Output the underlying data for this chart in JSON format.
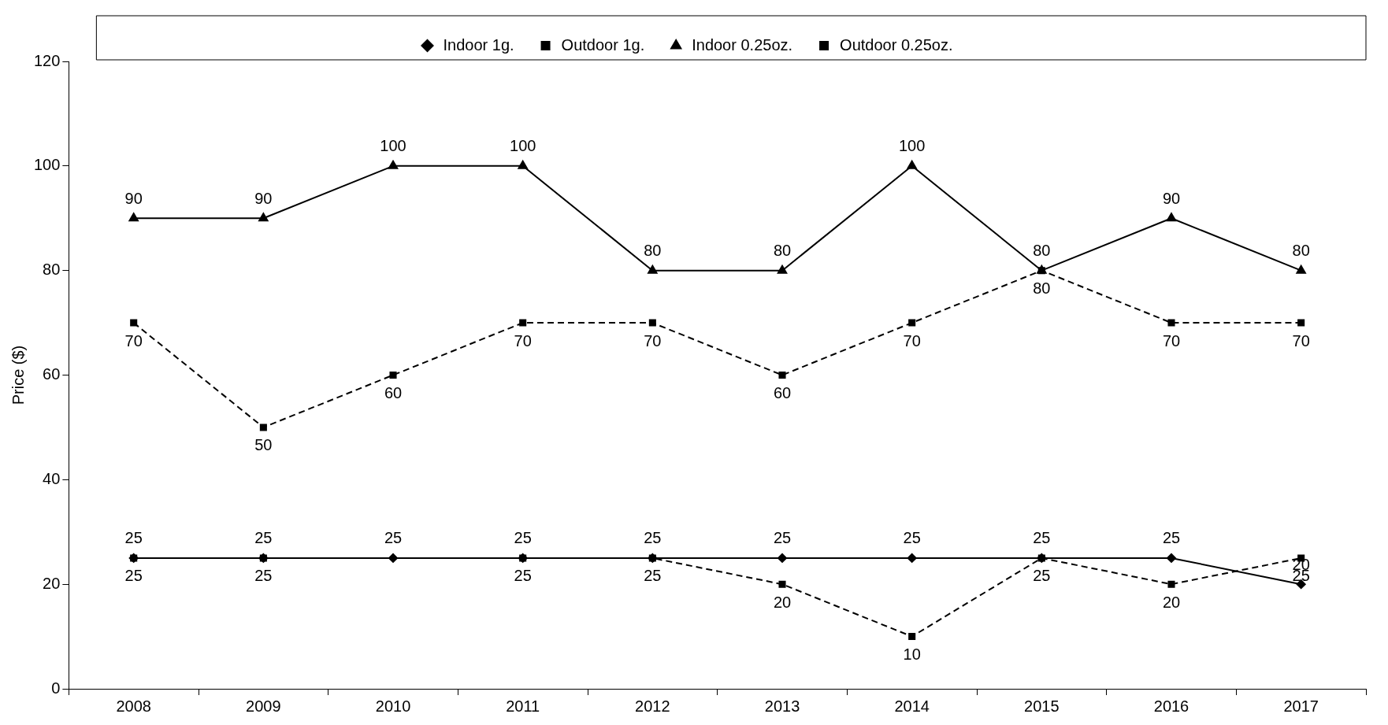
{
  "chart_data": {
    "type": "line",
    "ylabel": "Price ($)",
    "categories": [
      "2008",
      "2009",
      "2010",
      "2011",
      "2012",
      "2013",
      "2014",
      "2015",
      "2016",
      "2017"
    ],
    "series": [
      {
        "name": "Indoor 1g.",
        "color": "#000000",
        "marker": "diamond",
        "line_style": "solid",
        "values": [
          25,
          25,
          25,
          25,
          25,
          25,
          25,
          25,
          25,
          20
        ],
        "value_labels": [
          "25",
          "25",
          "25",
          "25",
          "25",
          "25",
          "25",
          "25",
          "25",
          "20"
        ]
      },
      {
        "name": "Outdoor 1g.",
        "color": "#000000",
        "marker": "square",
        "line_style": "dashed",
        "values": [
          25,
          25,
          null,
          25,
          25,
          20,
          10,
          25,
          20,
          25
        ],
        "value_labels": [
          "25",
          "25",
          null,
          "25",
          "25",
          "20",
          "10",
          "25",
          "20",
          "25"
        ]
      },
      {
        "name": "Indoor 0.25oz.",
        "color": "#000000",
        "marker": "triangle",
        "line_style": "solid",
        "values": [
          90,
          90,
          100,
          100,
          80,
          80,
          100,
          80,
          90,
          80
        ],
        "value_labels": [
          "90",
          "90",
          "100",
          "100",
          "80",
          "80",
          "100",
          "80",
          "90",
          "80"
        ]
      },
      {
        "name": "Outdoor 0.25oz.",
        "color": "#000000",
        "marker": "square",
        "line_style": "dashed",
        "values": [
          70,
          50,
          60,
          70,
          70,
          60,
          70,
          80,
          70,
          70
        ],
        "value_labels": [
          "70",
          "50",
          "60",
          "70",
          "70",
          "60",
          "70",
          "80",
          "70",
          "70"
        ]
      }
    ],
    "ylim": [
      0,
      120
    ],
    "yticks": [
      0,
      20,
      40,
      60,
      80,
      100,
      120
    ],
    "grid": false,
    "legend": "top"
  }
}
